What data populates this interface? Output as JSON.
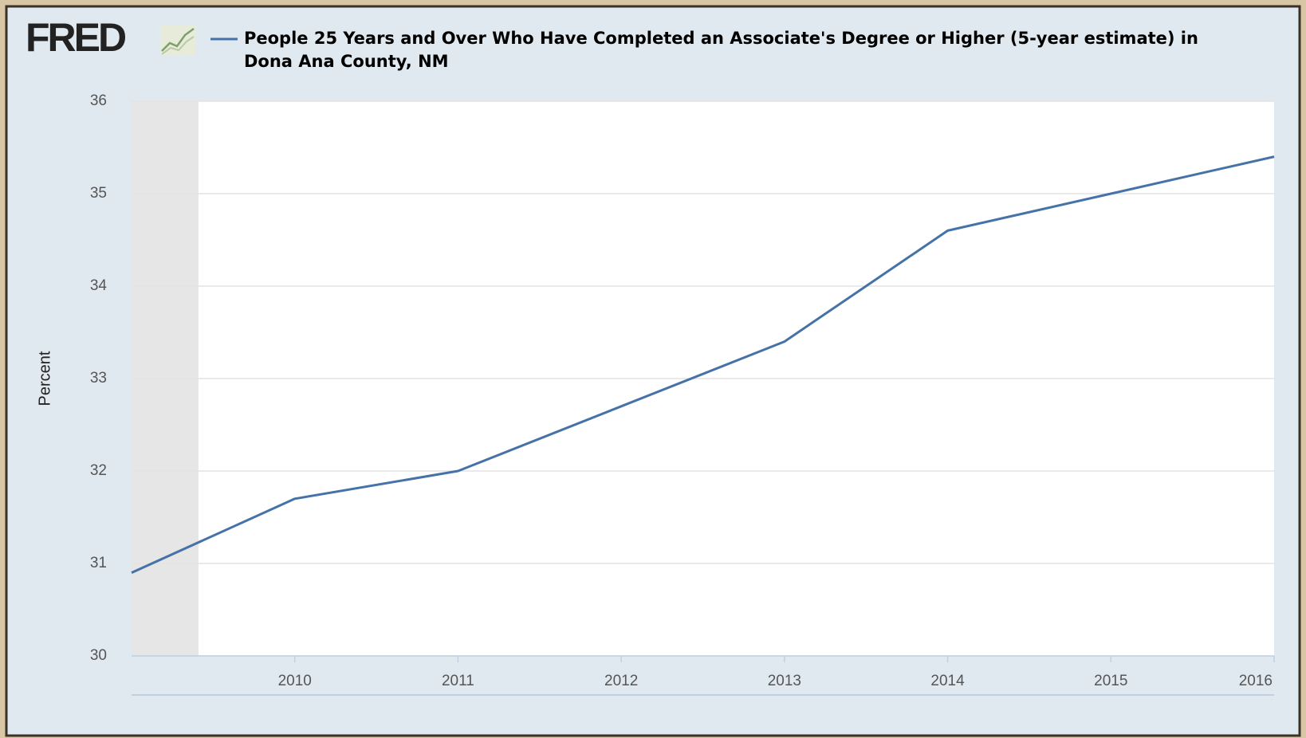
{
  "chart_data": {
    "type": "line",
    "logo": "FRED",
    "y_label": "Percent",
    "x": [
      2009,
      2010,
      2011,
      2012,
      2013,
      2014,
      2015,
      2016
    ],
    "series": [
      {
        "name_lines": [
          "People 25 Years and Over Who Have Completed an Associate's Degree or Higher (5-year estimate) in",
          "Dona Ana County, NM"
        ],
        "color": "#4572a7",
        "values": [
          30.9,
          31.7,
          32.0,
          32.7,
          33.4,
          34.6,
          35.0,
          35.4
        ]
      }
    ],
    "xlim": [
      2009,
      2016
    ],
    "xticks": [
      2010,
      2011,
      2012,
      2013,
      2014,
      2015,
      2016
    ],
    "ylim": [
      30,
      36
    ],
    "yticks": [
      30,
      31,
      32,
      33,
      34,
      35,
      36
    ],
    "grid": true,
    "shading": [
      [
        2009,
        2009.41
      ]
    ]
  }
}
